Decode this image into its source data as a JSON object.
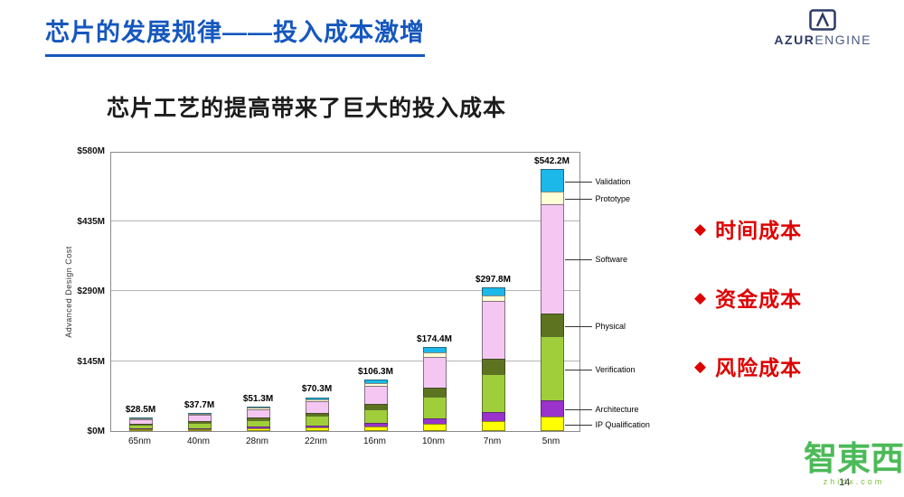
{
  "header": {
    "title": "芯片的发展规律——投入成本激增",
    "logo": {
      "primary": "AZUR",
      "secondary": "ENGINE"
    }
  },
  "main": {
    "heading": "芯片工艺的提高带来了巨大的投入成本",
    "bullets": [
      {
        "marker": "◆",
        "label": "时间成本"
      },
      {
        "marker": "◆",
        "label": "资金成本"
      },
      {
        "marker": "◆",
        "label": "风险成本"
      }
    ],
    "bullet_color": "#DE0000"
  },
  "chart_data": {
    "type": "bar",
    "stacked": true,
    "title": "",
    "xlabel": "",
    "ylabel": "Advanced Design Cost",
    "ylim": [
      0,
      580
    ],
    "yticks": [
      0,
      145,
      290,
      435,
      580
    ],
    "ytick_labels": [
      "$0M",
      "$145M",
      "$290M",
      "$435M",
      "$580M"
    ],
    "categories": [
      "65nm",
      "40nm",
      "28nm",
      "22nm",
      "16nm",
      "10nm",
      "7nm",
      "5nm"
    ],
    "total_labels": [
      "$28.5M",
      "$37.7M",
      "$51.3M",
      "$70.3M",
      "$106.3M",
      "$174.4M",
      "$297.8M",
      "$542.2M"
    ],
    "series": [
      {
        "name": "IP Qualification",
        "color": "#FFFF00",
        "values": [
          3,
          4,
          5,
          7,
          10,
          15,
          21,
          30
        ]
      },
      {
        "name": "Architecture",
        "color": "#9933CC",
        "values": [
          2,
          2.5,
          3.5,
          5,
          7,
          11,
          19,
          34
        ]
      },
      {
        "name": "Verification",
        "color": "#A0CE3A",
        "values": [
          8,
          10,
          14,
          19,
          28,
          46,
          78,
          132
        ]
      },
      {
        "name": "Physical",
        "color": "#5E7320",
        "values": [
          3,
          4,
          5,
          7,
          11,
          18,
          31,
          47
        ]
      },
      {
        "name": "Software",
        "color": "#F4C7F2",
        "values": [
          10,
          13,
          18,
          24,
          37,
          63,
          120,
          227
        ]
      },
      {
        "name": "Prototype",
        "color": "#FFFFD6",
        "values": [
          1,
          2,
          2.5,
          3.5,
          5.5,
          9,
          12,
          26
        ]
      },
      {
        "name": "Validation",
        "color": "#1CB8EA",
        "values": [
          1.5,
          2.2,
          3.3,
          4.8,
          7.8,
          12.4,
          16.8,
          46.2
        ]
      }
    ],
    "legend_position": "right",
    "grid": true
  },
  "footer": {
    "page_number": "14"
  },
  "watermark": {
    "text": "智東西",
    "sub": "zhidx.com"
  }
}
